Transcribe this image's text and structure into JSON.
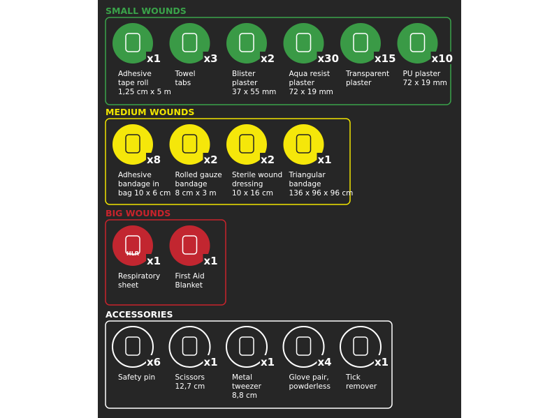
{
  "sections": [
    {
      "title": "SMALL WOUNDS",
      "items": [
        {
          "quantity": "x1",
          "label": [
            "Adhesive",
            "tape roll",
            "1,25 cm x 5 m"
          ]
        },
        {
          "quantity": "x3",
          "label": [
            "Towel",
            "tabs"
          ]
        },
        {
          "quantity": "x2",
          "label": [
            "Blister",
            "plaster",
            "37 x 55 mm"
          ]
        },
        {
          "quantity": "x30",
          "label": [
            "Aqua resist",
            "plaster",
            "72 x 19 mm"
          ]
        },
        {
          "quantity": "x15",
          "label": [
            "Transparent",
            "plaster"
          ]
        },
        {
          "quantity": "x10",
          "label": [
            "PU plaster",
            "72 x 19 mm"
          ]
        }
      ]
    },
    {
      "title": "MEDIUM WOUNDS",
      "items": [
        {
          "quantity": "x8",
          "label": [
            "Adhesive",
            "bandage in",
            "bag 10 x 6 cm"
          ]
        },
        {
          "quantity": "x2",
          "label": [
            "Rolled gauze",
            "bandage",
            "8 cm x 3 m"
          ]
        },
        {
          "quantity": "x2",
          "label": [
            "Sterile wound",
            "dressing",
            "10 x 16 cm"
          ]
        },
        {
          "quantity": "x1",
          "label": [
            "Triangular",
            "bandage",
            "136 x 96 x 96 cm"
          ]
        }
      ]
    },
    {
      "title": "BIG WOUNDS",
      "items": [
        {
          "quantity": "x1",
          "label": [
            "Respiratory",
            "sheet"
          ],
          "icon_text": "HLR"
        },
        {
          "quantity": "x1",
          "label": [
            "First Aid",
            "Blanket"
          ]
        }
      ]
    },
    {
      "title": "ACCESSORIES",
      "items": [
        {
          "quantity": "x6",
          "label": [
            "Safety pin"
          ]
        },
        {
          "quantity": "x1",
          "label": [
            "Scissors",
            "12,7 cm"
          ]
        },
        {
          "quantity": "x1",
          "label": [
            "Metal",
            "tweezer",
            "8,8 cm"
          ]
        },
        {
          "quantity": "x4",
          "label": [
            "Glove pair,",
            "powderless"
          ]
        },
        {
          "quantity": "x1",
          "label": [
            "Tick",
            "remover"
          ]
        }
      ]
    }
  ]
}
